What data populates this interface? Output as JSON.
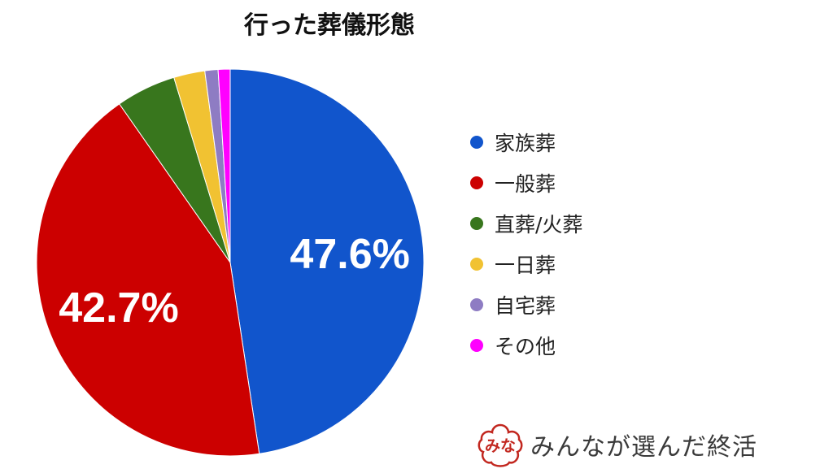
{
  "chart_data": {
    "type": "pie",
    "title": "行った葬儀形態",
    "categories": [
      "家族葬",
      "一般葬",
      "直葬/火葬",
      "一日葬",
      "自宅葬",
      "その他"
    ],
    "values": [
      47.6,
      42.7,
      5.0,
      2.6,
      1.1,
      1.0
    ],
    "data_labels": [
      "47.6%",
      "42.7%",
      "",
      "",
      "",
      ""
    ],
    "colors": [
      "#1155CC",
      "#CC0000",
      "#38761D",
      "#F1C232",
      "#8E7CC3",
      "#FF00FF"
    ],
    "legend_position": "right",
    "start_angle": "12 o'clock",
    "direction": "clockwise"
  },
  "brand": {
    "logo_text": "みな",
    "name": "みんなが選んだ終活",
    "color": "#C2271F"
  }
}
